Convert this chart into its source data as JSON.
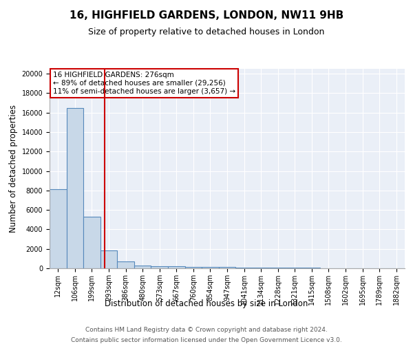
{
  "title_line1": "16, HIGHFIELD GARDENS, LONDON, NW11 9HB",
  "title_line2": "Size of property relative to detached houses in London",
  "xlabel": "Distribution of detached houses by size in London",
  "ylabel": "Number of detached properties",
  "bin_labels": [
    "12sqm",
    "106sqm",
    "199sqm",
    "293sqm",
    "386sqm",
    "480sqm",
    "573sqm",
    "667sqm",
    "760sqm",
    "854sqm",
    "947sqm",
    "1041sqm",
    "1134sqm",
    "1228sqm",
    "1321sqm",
    "1415sqm",
    "1508sqm",
    "1602sqm",
    "1695sqm",
    "1789sqm",
    "1882sqm"
  ],
  "bar_heights": [
    8100,
    16500,
    5300,
    1850,
    700,
    300,
    210,
    180,
    155,
    130,
    110,
    95,
    80,
    70,
    55,
    45,
    35,
    28,
    20,
    15,
    10
  ],
  "bar_color": "#c8d8e8",
  "bar_edge_color": "#5588bb",
  "bar_edge_width": 0.8,
  "red_line_x": 2.77,
  "red_line_color": "#cc0000",
  "annotation_text": "16 HIGHFIELD GARDENS: 276sqm\n← 89% of detached houses are smaller (29,256)\n11% of semi-detached houses are larger (3,657) →",
  "annotation_box_color": "#ffffff",
  "annotation_box_edge": "#cc0000",
  "ylim": [
    0,
    20500
  ],
  "yticks": [
    0,
    2000,
    4000,
    6000,
    8000,
    10000,
    12000,
    14000,
    16000,
    18000,
    20000
  ],
  "background_color": "#eaeff7",
  "footer_line1": "Contains HM Land Registry data © Crown copyright and database right 2024.",
  "footer_line2": "Contains public sector information licensed under the Open Government Licence v3.0.",
  "title_fontsize": 11,
  "subtitle_fontsize": 9,
  "axis_label_fontsize": 8.5,
  "tick_fontsize": 7,
  "annotation_fontsize": 7.5,
  "footer_fontsize": 6.5
}
